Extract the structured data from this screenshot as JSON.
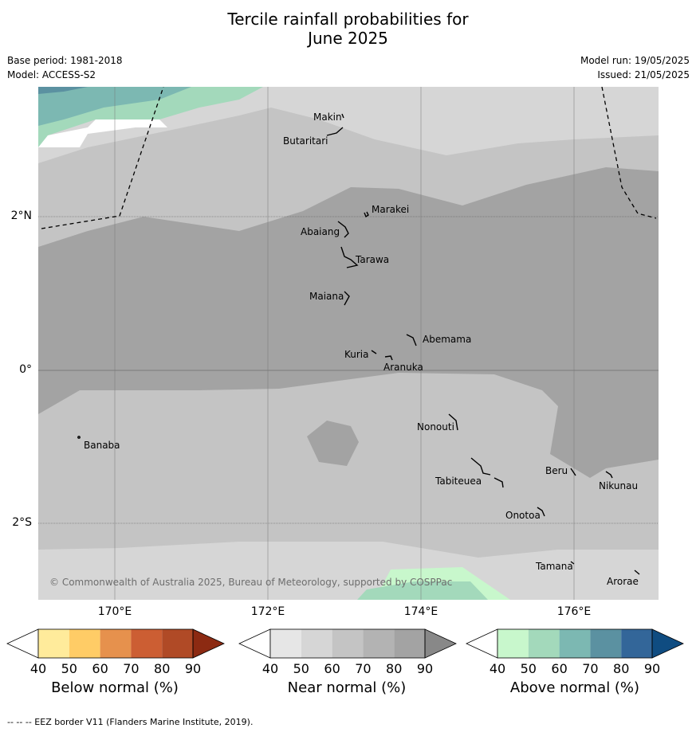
{
  "title_line1": "Tercile rainfall probabilities for",
  "title_line2": "June 2025",
  "base_period": "Base period: 1981-2018",
  "model": "Model: ACCESS-S2",
  "model_run": "Model run: 19/05/2025",
  "issued": "Issued: 21/05/2025",
  "copyright": "© Commonwealth of Australia 2025, Bureau of Meteorology, supported by COSPPac",
  "footer": "--  --  -- EEZ border V11 (Flanders Marine Institute, 2019).",
  "lon_labels": [
    "170°E",
    "172°E",
    "174°E",
    "176°E"
  ],
  "lat_labels": [
    "2°N",
    "0°",
    "2°S"
  ],
  "islands": [
    "Makin",
    "Butaritari",
    "Marakei",
    "Abaiang",
    "Tarawa",
    "Maiana",
    "Abemama",
    "Kuria",
    "Aranuka",
    "Banaba",
    "Nonouti",
    "Beru",
    "Nikunau",
    "Tabiteuea",
    "Onotoa",
    "Tamana",
    "Arorae"
  ],
  "colorbars": [
    {
      "title": "Below normal (%)",
      "ticks": [
        "40",
        "50",
        "60",
        "70",
        "80",
        "90"
      ],
      "colors": [
        "#ffffff",
        "#ffeb9b",
        "#ffcc66",
        "#e6914d",
        "#cc5e33",
        "#b04a26",
        "#8c2a12"
      ]
    },
    {
      "title": "Near normal (%)",
      "ticks": [
        "40",
        "50",
        "60",
        "70",
        "80",
        "90"
      ],
      "colors": [
        "#ffffff",
        "#e6e6e6",
        "#d6d6d6",
        "#c4c4c4",
        "#b3b3b3",
        "#a3a3a3",
        "#888888"
      ]
    },
    {
      "title": "Above normal (%)",
      "ticks": [
        "40",
        "50",
        "60",
        "70",
        "80",
        "90"
      ],
      "colors": [
        "#ffffff",
        "#c8f7cc",
        "#a3d9bb",
        "#7cb8b2",
        "#5b91a1",
        "#336699",
        "#0f4c81"
      ]
    }
  ]
}
